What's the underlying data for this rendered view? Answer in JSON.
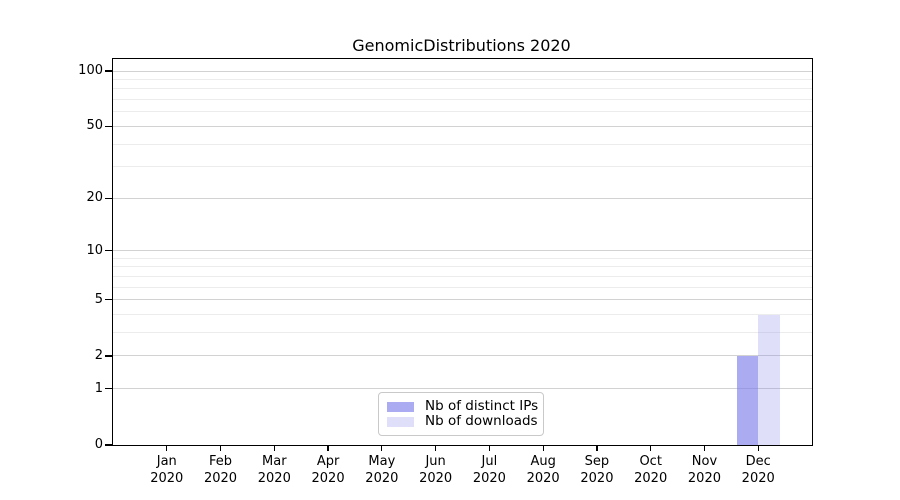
{
  "chart_data": {
    "type": "bar",
    "title": "GenomicDistributions 2020",
    "categories": [
      "Jan",
      "Feb",
      "Mar",
      "Apr",
      "May",
      "Jun",
      "Jul",
      "Aug",
      "Sep",
      "Oct",
      "Nov",
      "Dec"
    ],
    "category_sublabel": "2020",
    "series": [
      {
        "name": "Nb of distinct IPs",
        "color": "#7e7eeb",
        "alpha": 0.65,
        "values": [
          0,
          0,
          0,
          0,
          0,
          0,
          0,
          0,
          0,
          0,
          0,
          2
        ]
      },
      {
        "name": "Nb of downloads",
        "color": "#7e7eeb",
        "alpha": 0.25,
        "values": [
          0,
          0,
          0,
          0,
          0,
          0,
          0,
          0,
          0,
          0,
          0,
          4
        ]
      }
    ],
    "yscale": "log1p",
    "ylim": [
      0,
      115
    ],
    "yticks_major": [
      0,
      1,
      2,
      5,
      10,
      20,
      50,
      100
    ],
    "yticks_minor": [
      3,
      4,
      6,
      7,
      8,
      9,
      30,
      40,
      60,
      70,
      80,
      90
    ],
    "grid": "horizontal",
    "legend_position": "bottom-center-inside"
  },
  "colors": {
    "background": "#ffffff",
    "axis": "#000000",
    "text": "#000000",
    "major_grid": "#d2d2d2",
    "minor_grid": "#ececec",
    "legend_border": "#c9c9c9"
  }
}
